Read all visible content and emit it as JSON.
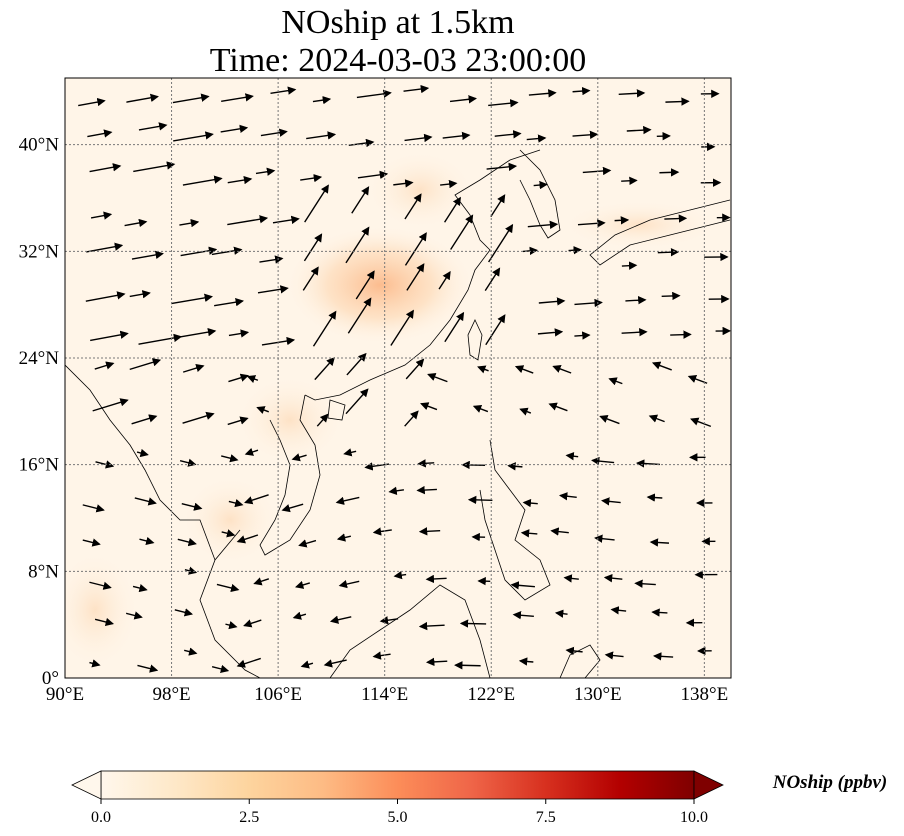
{
  "title": {
    "line1": "NOship at 1.5km",
    "line2": "Time: 2024-03-03 23:00:00"
  },
  "map": {
    "lon_range": [
      90,
      140
    ],
    "lat_range": [
      0,
      45
    ],
    "gridlines": true,
    "x_ticks": [
      {
        "value": 90,
        "label": "90°E"
      },
      {
        "value": 98,
        "label": "98°E"
      },
      {
        "value": 106,
        "label": "106°E"
      },
      {
        "value": 114,
        "label": "114°E"
      },
      {
        "value": 122,
        "label": "122°E"
      },
      {
        "value": 130,
        "label": "130°E"
      },
      {
        "value": 138,
        "label": "138°E"
      }
    ],
    "y_ticks": [
      {
        "value": 0,
        "label": "0°"
      },
      {
        "value": 8,
        "label": "8°N"
      },
      {
        "value": 16,
        "label": "16°N"
      },
      {
        "value": 24,
        "label": "24°N"
      },
      {
        "value": 32,
        "label": "32°N"
      },
      {
        "value": 40,
        "label": "40°N"
      }
    ]
  },
  "colorbar": {
    "label": "NOship (ppbv)",
    "min": 0,
    "max": 10,
    "extend": "both",
    "colormap": "OrRd",
    "colors": [
      "#fff7ec",
      "#fee8c8",
      "#fdd49e",
      "#fdbb84",
      "#fc8d59",
      "#ef6548",
      "#d7301f",
      "#b30000",
      "#7f0000"
    ],
    "ticks": [
      "0.0",
      "2.5",
      "5.0",
      "7.5",
      "10.0"
    ]
  }
}
